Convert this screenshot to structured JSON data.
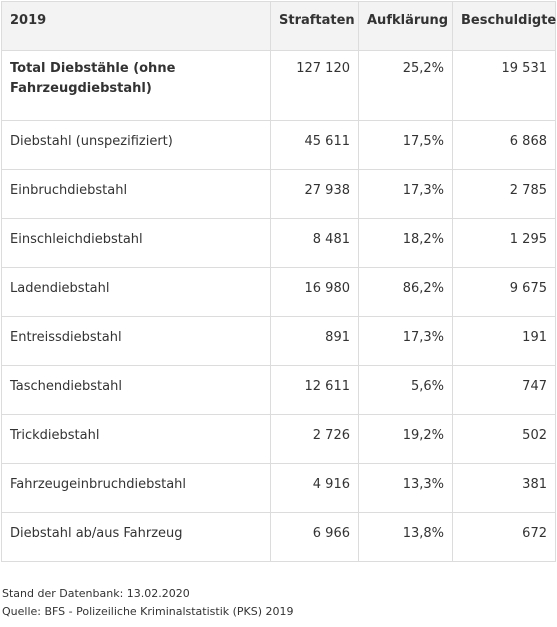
{
  "table": {
    "headers": [
      "2019",
      "Straftaten",
      "Aufklärung",
      "Beschuldigte"
    ],
    "rows": [
      [
        "Total Diebstähle (ohne Fahrzeugdiebstahl)",
        "127 120",
        "25,2%",
        "19 531"
      ],
      [
        "Diebstahl (unspezifiziert)",
        "45 611",
        "17,5%",
        "6 868"
      ],
      [
        "Einbruchdiebstahl",
        "27 938",
        "17,3%",
        "2 785"
      ],
      [
        "Einschleichdiebstahl",
        "8 481",
        "18,2%",
        "1 295"
      ],
      [
        "Ladendiebstahl",
        "16 980",
        "86,2%",
        "9 675"
      ],
      [
        "Entreissdiebstahl",
        "891",
        "17,3%",
        "191"
      ],
      [
        "Taschendiebstahl",
        "12 611",
        "5,6%",
        "747"
      ],
      [
        "Trickdiebstahl",
        "2 726",
        "19,2%",
        "502"
      ],
      [
        "Fahrzeugeinbruchdiebstahl",
        "4 916",
        "13,3%",
        "381"
      ],
      [
        "Diebstahl ab/aus Fahrzeug",
        "6 966",
        "13,8%",
        "672"
      ]
    ]
  },
  "footer": {
    "database_date": "Stand der Datenbank: 13.02.2020",
    "source": "Quelle: BFS - Polizeiliche Kriminalstatistik (PKS) 2019"
  }
}
